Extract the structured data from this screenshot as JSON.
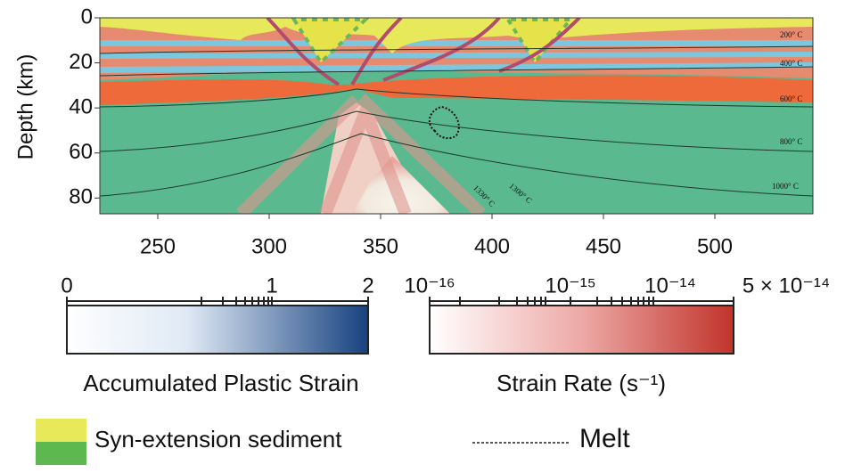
{
  "chart_data": {
    "type": "section",
    "ylabel": "Depth (km)",
    "xlim": [
      224,
      544
    ],
    "ylim": [
      0,
      87
    ],
    "xticks": [
      250,
      300,
      350,
      400,
      450,
      500
    ],
    "yticks": [
      0,
      20,
      40,
      60,
      80
    ],
    "annotations": [
      "200° C",
      "400° C",
      "600° C",
      "800° C",
      "1000° C",
      "1300° C",
      "1330° C"
    ]
  },
  "colorbars": [
    {
      "label": "Accumulated Plastic Strain",
      "ticks": [
        "0",
        "1",
        "2"
      ]
    },
    {
      "label": "Strain Rate (s⁻¹)",
      "ticks": [
        "10⁻¹⁶",
        "10⁻¹⁵",
        "10⁻¹⁴",
        "5 × 10⁻¹⁴"
      ]
    }
  ],
  "legend": [
    "Syn-extension sediment",
    "Melt"
  ]
}
